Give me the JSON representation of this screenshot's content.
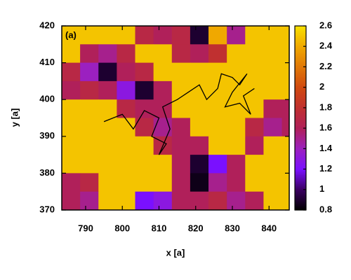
{
  "chart_data": {
    "type": "heatmap",
    "panel_label": "(a)",
    "xlabel": "x [a]",
    "ylabel": "y [a]",
    "xlim": [
      783.5,
      845.5
    ],
    "ylim": [
      370,
      420
    ],
    "xticks": [
      790,
      800,
      810,
      820,
      830,
      840
    ],
    "yticks": [
      370,
      380,
      390,
      400,
      410,
      420
    ],
    "clim": [
      0.8,
      2.6
    ],
    "cticks": [
      0.8,
      1,
      1.2,
      1.4,
      1.6,
      1.8,
      2,
      2.2,
      2.4,
      2.6
    ],
    "colormap": [
      "#000000",
      "#3a0060",
      "#7a10ff",
      "#9b20c0",
      "#b0205a",
      "#c03030",
      "#d04a10",
      "#e07808",
      "#f0a800",
      "#f8e000"
    ],
    "x": [
      786,
      791,
      796,
      801,
      806,
      811,
      816,
      821,
      826,
      831,
      836,
      841,
      846
    ],
    "y": [
      417.5,
      412.5,
      407.5,
      402.5,
      397.5,
      392.5,
      387.5,
      382.5,
      377.5,
      372.5
    ],
    "z": [
      [
        2.5,
        2.5,
        2.5,
        2.5,
        1.7,
        1.6,
        1.7,
        0.9,
        2.4,
        1.5,
        2.5,
        2.5,
        2.5
      ],
      [
        2.5,
        1.6,
        1.5,
        1.7,
        2.5,
        2.5,
        1.7,
        1.6,
        1.8,
        2.5,
        2.5,
        2.5,
        2.5
      ],
      [
        1.7,
        1.4,
        0.9,
        1.6,
        1.7,
        2.5,
        2.5,
        2.5,
        2.5,
        2.5,
        2.5,
        2.5,
        2.5
      ],
      [
        1.6,
        1.7,
        1.6,
        1.3,
        0.9,
        1.6,
        2.5,
        2.5,
        2.5,
        2.5,
        2.5,
        2.5,
        2.5
      ],
      [
        2.5,
        2.5,
        2.5,
        1.7,
        1.6,
        1.6,
        2.5,
        2.5,
        2.5,
        2.5,
        2.5,
        1.6,
        1.6
      ],
      [
        2.5,
        2.5,
        2.5,
        2.5,
        1.7,
        1.5,
        1.6,
        2.5,
        2.5,
        2.5,
        1.7,
        1.5,
        1.6
      ],
      [
        2.5,
        2.5,
        2.5,
        2.5,
        2.5,
        1.7,
        1.6,
        1.6,
        2.5,
        2.5,
        1.6,
        2.5,
        2.5
      ],
      [
        2.5,
        2.5,
        2.5,
        2.5,
        2.5,
        2.5,
        1.6,
        0.9,
        1.2,
        1.6,
        2.5,
        2.5,
        2.5
      ],
      [
        1.6,
        1.7,
        2.5,
        2.5,
        2.5,
        2.5,
        1.6,
        0.85,
        1.5,
        1.6,
        2.5,
        2.5,
        2.5
      ],
      [
        1.6,
        1.5,
        2.5,
        2.5,
        1.2,
        1.3,
        1.6,
        1.6,
        1.7,
        1.5,
        1.6,
        2.5,
        2.5
      ]
    ],
    "trajectory": {
      "color": "#000000",
      "x": [
        795,
        800,
        803,
        806,
        810,
        808,
        812,
        810,
        813,
        811,
        815,
        818,
        821,
        823,
        826,
        827,
        830,
        832,
        834,
        830,
        828,
        832,
        835,
        833,
        836
      ],
      "y": [
        394,
        396,
        392,
        397,
        395,
        390,
        388,
        385,
        392,
        398,
        400,
        402,
        404,
        400,
        403,
        407,
        406,
        404,
        407,
        402,
        398,
        399,
        396,
        401,
        403
      ]
    }
  }
}
